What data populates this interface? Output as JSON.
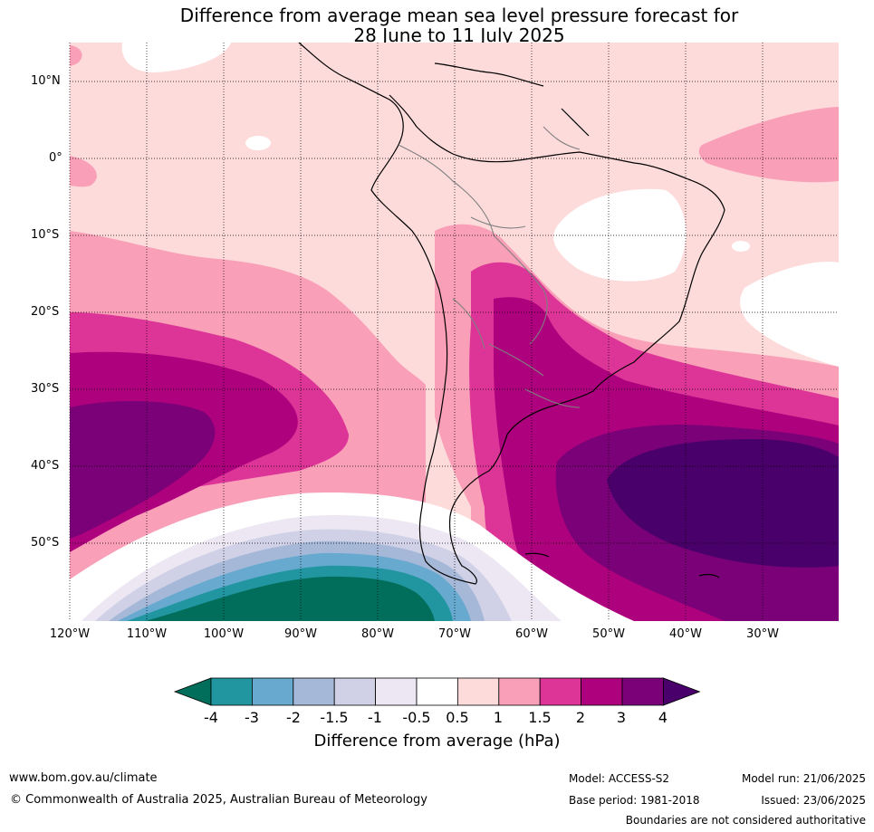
{
  "title_line1": "Difference from average mean sea level pressure forecast for",
  "title_line2": "28 June to 11 July 2025",
  "lat_labels": [
    "10°N",
    "0°",
    "10°S",
    "20°S",
    "30°S",
    "40°S",
    "50°S"
  ],
  "lon_labels": [
    "120°W",
    "110°W",
    "100°W",
    "90°W",
    "80°W",
    "70°W",
    "60°W",
    "50°W",
    "40°W",
    "30°W"
  ],
  "colorbar": {
    "ticks": [
      "-4",
      "-3",
      "-2",
      "-1.5",
      "-1",
      "-0.5",
      "0.5",
      "1",
      "1.5",
      "2",
      "3",
      "4"
    ],
    "colors": [
      "#006e5a",
      "#2196a0",
      "#67a9cf",
      "#a6b8d8",
      "#d0d1e6",
      "#ece7f2",
      "#ffffff",
      "#fddbdb",
      "#f99fb8",
      "#dd3497",
      "#ae017e",
      "#7a0177",
      "#49006a"
    ],
    "label": "Difference from average (hPa)"
  },
  "footer": {
    "url": "www.bom.gov.au/climate",
    "copyright": "© Commonwealth of Australia 2025, Australian Bureau of Meteorology",
    "model": "Model: ACCESS-S2",
    "base_period": "Base period: 1981-2018",
    "model_run": "Model run: 21/06/2025",
    "issued": "Issued: 23/06/2025",
    "boundaries": "Boundaries are not considered authoritative"
  }
}
